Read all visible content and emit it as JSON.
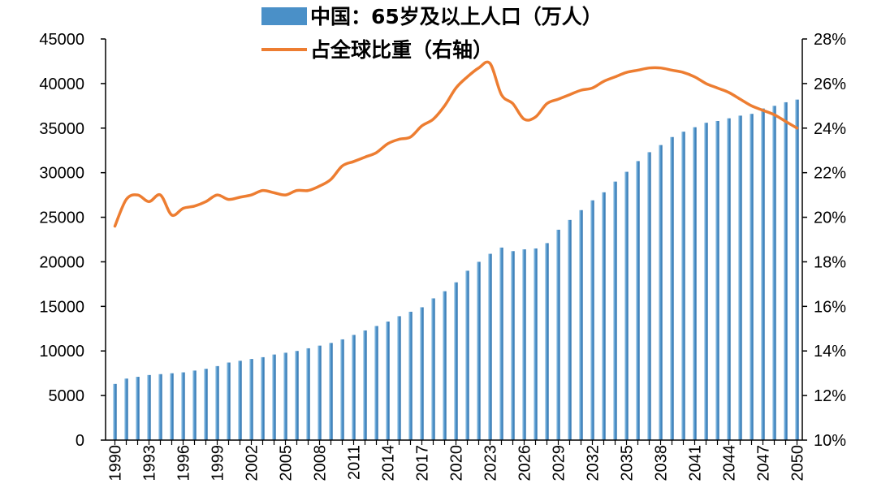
{
  "chart_data": {
    "type": "bar",
    "title": "",
    "x_tick_labels": [
      "1990",
      "1993",
      "1996",
      "1999",
      "2002",
      "2005",
      "2008",
      "2011",
      "2014",
      "2017",
      "2020",
      "2023",
      "2026",
      "2029",
      "2032",
      "2035",
      "2038",
      "2041",
      "2044",
      "2047",
      "2050"
    ],
    "y_left": {
      "ylim": [
        0,
        45000
      ],
      "ticks": [
        "0",
        "5000",
        "10000",
        "15000",
        "20000",
        "25000",
        "30000",
        "35000",
        "40000",
        "45000"
      ]
    },
    "y_right": {
      "ylim": [
        10,
        28
      ],
      "ticks": [
        "10%",
        "12%",
        "14%",
        "16%",
        "18%",
        "20%",
        "22%",
        "24%",
        "26%",
        "28%"
      ]
    },
    "grid": false,
    "legend_position": "top-center",
    "series": [
      {
        "name": "中国：65岁及以上人口（万人）",
        "type": "bar",
        "axis": "left",
        "color": "#4a90c8",
        "x": [
          1990,
          1991,
          1992,
          1993,
          1994,
          1995,
          1996,
          1997,
          1998,
          1999,
          2000,
          2001,
          2002,
          2003,
          2004,
          2005,
          2006,
          2007,
          2008,
          2009,
          2010,
          2011,
          2012,
          2013,
          2014,
          2015,
          2016,
          2017,
          2018,
          2019,
          2020,
          2021,
          2022,
          2023,
          2024,
          2025,
          2026,
          2027,
          2028,
          2029,
          2030,
          2031,
          2032,
          2033,
          2034,
          2035,
          2036,
          2037,
          2038,
          2039,
          2040,
          2041,
          2042,
          2043,
          2044,
          2045,
          2046,
          2047,
          2048,
          2049,
          2050
        ],
        "values": [
          6300,
          6900,
          7100,
          7300,
          7400,
          7500,
          7600,
          7800,
          8000,
          8300,
          8700,
          8900,
          9100,
          9300,
          9600,
          9800,
          10000,
          10300,
          10600,
          10900,
          11300,
          11800,
          12300,
          12800,
          13300,
          13900,
          14400,
          14900,
          15900,
          16700,
          17700,
          19000,
          20000,
          20900,
          21600,
          21200,
          21400,
          21500,
          22100,
          23600,
          24700,
          25800,
          26900,
          27800,
          29000,
          30100,
          31300,
          32300,
          33100,
          34000,
          34600,
          35100,
          35600,
          35800,
          36100,
          36400,
          36600,
          37200,
          37500,
          37900,
          38200
        ]
      },
      {
        "name": "占全球比重（右轴）",
        "type": "line",
        "axis": "right",
        "color": "#ed7d31",
        "x": [
          1990,
          1991,
          1992,
          1993,
          1994,
          1995,
          1996,
          1997,
          1998,
          1999,
          2000,
          2001,
          2002,
          2003,
          2004,
          2005,
          2006,
          2007,
          2008,
          2009,
          2010,
          2011,
          2012,
          2013,
          2014,
          2015,
          2016,
          2017,
          2018,
          2019,
          2020,
          2021,
          2022,
          2023,
          2024,
          2025,
          2026,
          2027,
          2028,
          2029,
          2030,
          2031,
          2032,
          2033,
          2034,
          2035,
          2036,
          2037,
          2038,
          2039,
          2040,
          2041,
          2042,
          2043,
          2044,
          2045,
          2046,
          2047,
          2048,
          2049,
          2050
        ],
        "values": [
          19.6,
          20.8,
          21.0,
          20.7,
          21.0,
          20.1,
          20.4,
          20.5,
          20.7,
          21.0,
          20.8,
          20.9,
          21.0,
          21.2,
          21.1,
          21.0,
          21.2,
          21.2,
          21.4,
          21.7,
          22.3,
          22.5,
          22.7,
          22.9,
          23.3,
          23.5,
          23.6,
          24.1,
          24.4,
          25.0,
          25.8,
          26.3,
          26.7,
          26.9,
          25.5,
          25.1,
          24.4,
          24.5,
          25.1,
          25.3,
          25.5,
          25.7,
          25.8,
          26.1,
          26.3,
          26.5,
          26.6,
          26.7,
          26.7,
          26.6,
          26.5,
          26.3,
          26.0,
          25.8,
          25.6,
          25.3,
          25.0,
          24.8,
          24.6,
          24.3,
          24.0
        ]
      }
    ]
  }
}
